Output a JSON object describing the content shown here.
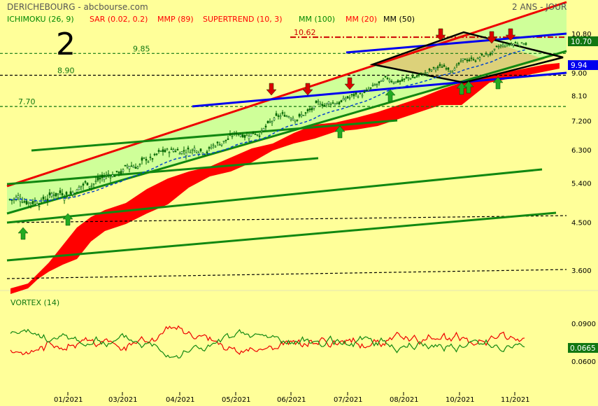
{
  "header": {
    "ticker": "DERICHEBOURG - abcbourse.com",
    "period": "2 ANS - JOUR",
    "chart_number": "2"
  },
  "legend": [
    {
      "label": "ICHIMOKU (26, 9)",
      "color": "#008800"
    },
    {
      "label": "SAR (0.02, 0.2)",
      "color": "#ff0000"
    },
    {
      "label": "MMP (89)",
      "color": "#ff0000"
    },
    {
      "label": "SUPERTREND (10, 3)",
      "color": "#ff0000"
    },
    {
      "label": "MM (100)",
      "color": "#008800"
    },
    {
      "label": "MM (20)",
      "color": "#ff0000"
    },
    {
      "label": "MM (50)",
      "color": "#000000"
    }
  ],
  "price_axis_labels": [
    "10.80",
    "9.00",
    "8.10",
    "7.200",
    "6.300",
    "5.400",
    "4.500",
    "3.600"
  ],
  "last_price_badges": {
    "green": "10.70",
    "blue": "9.94"
  },
  "level_labels": [
    "10.62",
    "9.85",
    "8.90",
    "7.70"
  ],
  "indicator": {
    "title": "VORTEX (14)",
    "axis_labels": [
      "0.0900",
      "0.0600"
    ],
    "last_value": "0.0665"
  },
  "colors": {
    "background": "#ffff99",
    "channel_fill": "#ccff99",
    "triangle_fill": "#ddcc77",
    "cloud_red": "#ff0000",
    "trend_green": "#118811",
    "trend_blue": "#0000ee",
    "trend_red": "#ee0000",
    "price_blue": "#0044cc"
  },
  "chart_data": {
    "type": "candlestick",
    "x_tick_labels": [
      "01/2021",
      "03/2021",
      "04/2021",
      "05/2021",
      "06/2021",
      "07/2021",
      "08/2021",
      "10/2021",
      "11/2021"
    ],
    "y_scale": "log",
    "price_ticks": [
      10.8,
      9.0,
      8.1,
      7.2,
      6.3,
      5.4,
      4.5,
      3.6
    ],
    "horizontal_levels": [
      10.62,
      9.85,
      8.9,
      7.7
    ],
    "last_close": 10.7,
    "supertrend_last": 9.94,
    "vortex": {
      "title": "VORTEX (14)",
      "ticks": [
        0.09,
        0.06
      ],
      "last": 0.0665
    }
  }
}
